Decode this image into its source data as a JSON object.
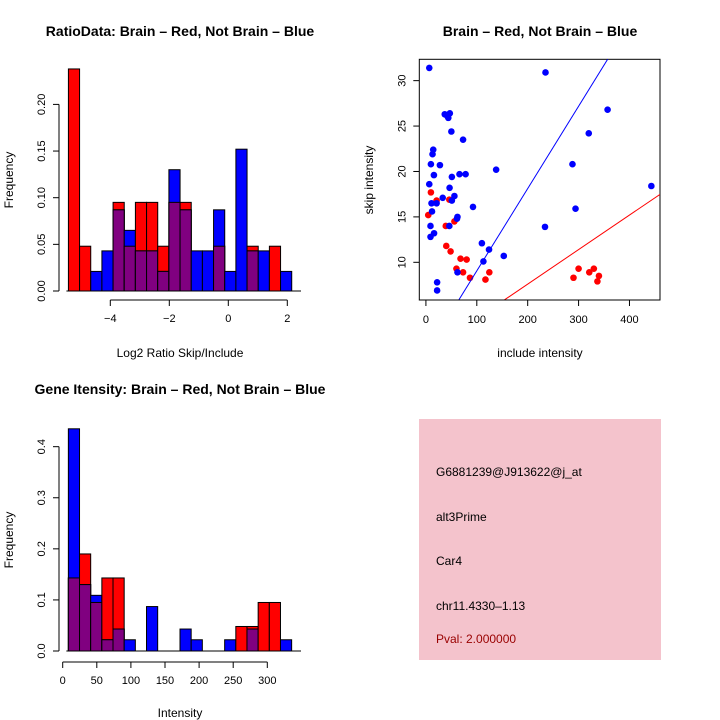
{
  "colors": {
    "red": "#ff0000",
    "blue": "#0000ff",
    "overlap": "#800080",
    "info_bg": "#f4c3cc",
    "pval": "#990000"
  },
  "chart_data": [
    {
      "type": "bar",
      "id": "ratio_hist",
      "title": "RatioData: Brain – Red, Not Brain – Blue",
      "xlabel": "Log2 Ratio Skip/Include",
      "ylabel": "Frequency",
      "bin_start": -5.42,
      "bin_width": 0.3785,
      "xticks": [
        -4,
        -2,
        0,
        2
      ],
      "xtick_labels": [
        "−4",
        "−2",
        "0",
        "2"
      ],
      "yticks": [
        0,
        0.05,
        0.1,
        0.15,
        0.2
      ],
      "ytick_labels": [
        "0.00",
        "0.05",
        "0.10",
        "0.15",
        "0.20"
      ],
      "series": [
        {
          "name": "Brain",
          "color": "red",
          "values": [
            0.238,
            0.048,
            0,
            0,
            0.095,
            0.048,
            0.095,
            0.095,
            0.048,
            0.095,
            0.095,
            0,
            0,
            0.048,
            0,
            0,
            0.048,
            0,
            0.048,
            0
          ]
        },
        {
          "name": "Not Brain",
          "color": "blue",
          "values": [
            0,
            0,
            0.021,
            0.043,
            0.087,
            0.065,
            0.043,
            0.043,
            0.021,
            0.13,
            0.087,
            0.043,
            0.043,
            0.087,
            0.021,
            0.152,
            0.043,
            0.043,
            0,
            0.021
          ]
        }
      ]
    },
    {
      "type": "scatter",
      "id": "intensity_scatter",
      "title": "Brain – Red, Not Brain – Blue",
      "xlabel": "include intensity",
      "ylabel": "skip intensity",
      "xlim": [
        -13,
        460
      ],
      "ylim": [
        5.85,
        32.35
      ],
      "xticks": [
        0,
        100,
        200,
        300,
        400
      ],
      "xtick_labels": [
        "0",
        "100",
        "200",
        "300",
        "400"
      ],
      "yticks": [
        10,
        15,
        20,
        25,
        30
      ],
      "ytick_labels": [
        "10",
        "15",
        "20",
        "25",
        "30"
      ],
      "series": [
        {
          "name": "Brain",
          "color": "red",
          "fit_slope": 0.038,
          "points": [
            [
              4.6,
              15.2
            ],
            [
              9.8,
              17.7
            ],
            [
              21,
              16.8
            ],
            [
              46,
              16.9
            ],
            [
              39,
              14.0
            ],
            [
              56,
              14.5
            ],
            [
              40,
              11.8
            ],
            [
              48.5,
              11.2
            ],
            [
              68,
              10.4
            ],
            [
              80,
              10.3
            ],
            [
              60,
              9.3
            ],
            [
              73,
              8.9
            ],
            [
              86.6,
              8.3
            ],
            [
              117,
              8.1
            ],
            [
              124.6,
              8.9
            ],
            [
              290,
              8.3
            ],
            [
              300,
              9.3
            ],
            [
              321,
              8.9
            ],
            [
              330,
              9.3
            ],
            [
              340,
              8.5
            ],
            [
              337,
              7.9
            ]
          ]
        },
        {
          "name": "Not Brain",
          "color": "blue",
          "fit_slope": 0.0906,
          "points": [
            [
              6.6,
              31.4
            ],
            [
              235,
              30.9
            ],
            [
              37,
              26.3
            ],
            [
              44,
              25.9
            ],
            [
              47,
              26.4
            ],
            [
              42,
              26.1
            ],
            [
              50,
              24.4
            ],
            [
              73,
              23.5
            ],
            [
              357,
              26.8
            ],
            [
              320,
              24.2
            ],
            [
              14.4,
              22.4
            ],
            [
              13,
              21.9
            ],
            [
              9.8,
              20.8
            ],
            [
              27.5,
              20.7
            ],
            [
              138,
              20.2
            ],
            [
              288,
              20.8
            ],
            [
              15.7,
              19.6
            ],
            [
              6.6,
              18.6
            ],
            [
              51,
              19.4
            ],
            [
              66,
              19.7
            ],
            [
              78,
              19.7
            ],
            [
              443,
              18.4
            ],
            [
              46.5,
              18.2
            ],
            [
              33,
              17.1
            ],
            [
              56,
              17.3
            ],
            [
              51,
              16.8
            ],
            [
              92.5,
              16.1
            ],
            [
              11,
              16.5
            ],
            [
              21,
              16.5
            ],
            [
              12,
              15.6
            ],
            [
              62,
              15.0
            ],
            [
              61,
              14.8
            ],
            [
              294,
              15.9
            ],
            [
              9,
              14.0
            ],
            [
              46,
              14.0
            ],
            [
              234,
              13.9
            ],
            [
              9,
              12.8
            ],
            [
              16,
              13.2
            ],
            [
              110,
              12.1
            ],
            [
              124,
              11.4
            ],
            [
              113,
              10.1
            ],
            [
              153,
              10.7
            ],
            [
              62,
              8.9
            ],
            [
              22,
              7.8
            ],
            [
              22,
              6.9
            ]
          ]
        }
      ]
    },
    {
      "type": "bar",
      "id": "gene_intensity_hist",
      "title": "Gene Itensity: Brain – Red, Not Brain – Blue",
      "xlabel": "Intensity",
      "ylabel": "Frequency",
      "bin_start": 8.3,
      "bin_width": 16.37,
      "xticks": [
        0,
        50,
        100,
        150,
        200,
        250,
        300
      ],
      "xtick_labels": [
        "0",
        "50",
        "100",
        "150",
        "200",
        "250",
        "300"
      ],
      "yticks": [
        0,
        0.1,
        0.2,
        0.3,
        0.4
      ],
      "ytick_labels": [
        "0.0",
        "0.1",
        "0.2",
        "0.3",
        "0.4"
      ],
      "series": [
        {
          "name": "Brain",
          "color": "red",
          "values": [
            0.143,
            0.19,
            0.095,
            0.143,
            0.143,
            0,
            0,
            0,
            0,
            0,
            0,
            0,
            0,
            0,
            0,
            0.048,
            0.048,
            0.095,
            0.095,
            0
          ]
        },
        {
          "name": "Not Brain",
          "color": "blue",
          "values": [
            0.435,
            0.13,
            0.109,
            0.022,
            0.043,
            0.022,
            0,
            0.087,
            0,
            0,
            0.043,
            0.022,
            0,
            0,
            0.022,
            0,
            0.043,
            0,
            0,
            0.022
          ]
        }
      ]
    }
  ],
  "info": {
    "probe_id": "G6881239@J913622@j_at",
    "event_type": "alt3Prime",
    "gene": "Car4",
    "location": "chr11.4330–1.13",
    "pval": "Pval: 2.000000"
  }
}
